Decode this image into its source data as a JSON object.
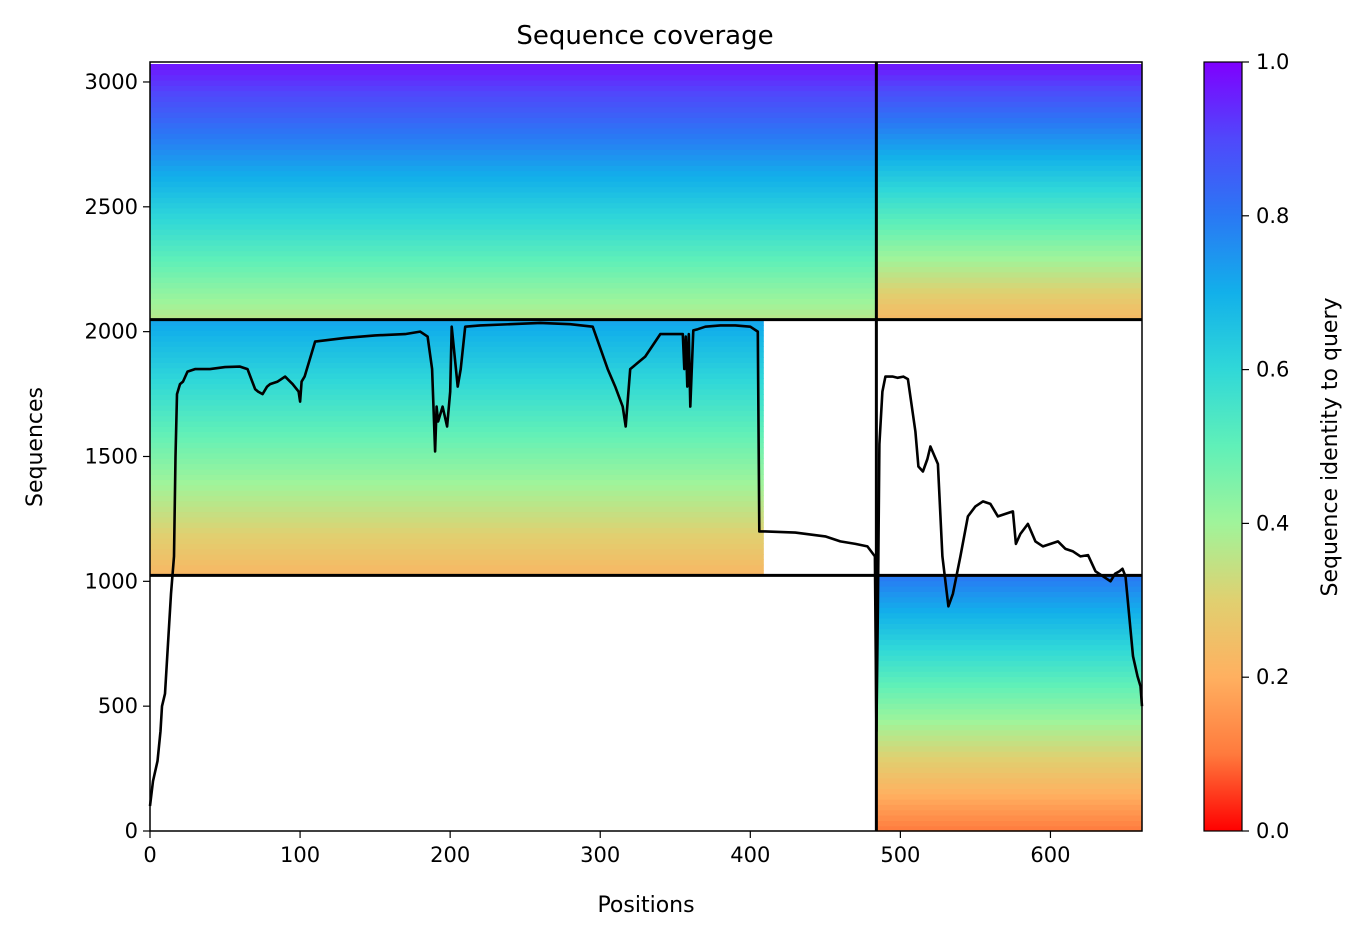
{
  "chart_data": {
    "type": "heatmap",
    "title": "Sequence coverage",
    "xlabel": "Positions",
    "ylabel": "Sequences",
    "xlim": [
      0,
      661
    ],
    "ylim": [
      0,
      3080
    ],
    "xticks": [
      0,
      100,
      200,
      300,
      400,
      500,
      600
    ],
    "yticks": [
      0,
      500,
      1000,
      1500,
      2000,
      2500,
      3000
    ],
    "colorbar": {
      "label": "Sequence identity to query",
      "ticks": [
        0.0,
        0.2,
        0.4,
        0.6,
        0.8,
        1.0
      ],
      "tick_labels": [
        "0.0",
        "0.2",
        "0.4",
        "0.6",
        "0.8",
        "1.0"
      ],
      "colormap": "rainbow_r",
      "colors": [
        "#ff0000",
        "#ff7a3d",
        "#ffb060",
        "#e0d070",
        "#a0f49a",
        "#60f0b8",
        "#30d8d8",
        "#12b0ea",
        "#2a78f4",
        "#5048fb",
        "#7f00ff"
      ]
    },
    "domain_divider_x": 484,
    "group_divider_y": [
      1024,
      2048
    ],
    "blocks": [
      {
        "x0": 0,
        "x1": 484,
        "y0": 2048,
        "y1": 3072,
        "identity_bottom": 0.36,
        "identity_top": 0.97
      },
      {
        "x0": 484,
        "x1": 661,
        "y0": 2048,
        "y1": 3072,
        "identity_bottom": 0.22,
        "identity_top": 0.97
      },
      {
        "x0": 0,
        "x1": 409,
        "y0": 1024,
        "y1": 2048,
        "identity_bottom": 0.22,
        "identity_top": 0.72
      },
      {
        "x0": 484,
        "x1": 661,
        "y0": 0,
        "y1": 1024,
        "identity_bottom": 0.1,
        "identity_top": 0.8
      }
    ],
    "coverage_line": {
      "color": "#000000",
      "x": [
        0,
        2,
        5,
        7,
        8,
        10,
        12,
        14,
        16,
        17,
        18,
        20,
        22,
        25,
        30,
        40,
        50,
        60,
        65,
        70,
        72,
        75,
        78,
        80,
        85,
        90,
        95,
        99,
        100,
        101,
        103,
        110,
        130,
        150,
        170,
        180,
        185,
        188,
        190,
        191,
        192,
        195,
        198,
        200,
        201,
        203,
        205,
        207,
        210,
        220,
        240,
        260,
        280,
        295,
        305,
        310,
        315,
        317,
        320,
        330,
        340,
        355,
        356,
        357,
        358,
        359,
        360,
        362,
        365,
        370,
        380,
        390,
        400,
        405,
        406,
        408,
        410,
        430,
        450,
        460,
        470,
        478,
        483,
        484,
        485,
        486,
        488,
        490,
        492,
        495,
        498,
        502,
        505,
        510,
        512,
        515,
        518,
        520,
        525,
        528,
        530,
        532,
        535,
        540,
        545,
        550,
        555,
        560,
        565,
        570,
        575,
        577,
        580,
        585,
        590,
        595,
        600,
        605,
        610,
        615,
        620,
        625,
        630,
        635,
        640,
        643,
        646,
        648,
        650,
        655,
        658,
        660,
        661
      ],
      "y": [
        100,
        200,
        280,
        400,
        500,
        550,
        750,
        950,
        1100,
        1500,
        1750,
        1790,
        1800,
        1840,
        1850,
        1850,
        1858,
        1860,
        1850,
        1770,
        1760,
        1750,
        1780,
        1790,
        1800,
        1820,
        1790,
        1760,
        1720,
        1800,
        1820,
        1960,
        1975,
        1985,
        1990,
        2000,
        1980,
        1850,
        1520,
        1700,
        1640,
        1700,
        1620,
        1760,
        2020,
        1900,
        1780,
        1850,
        2020,
        2025,
        2030,
        2035,
        2030,
        2020,
        1850,
        1780,
        1700,
        1620,
        1850,
        1900,
        1990,
        1990,
        1850,
        1980,
        1780,
        1990,
        1700,
        2005,
        2010,
        2020,
        2025,
        2025,
        2020,
        2000,
        1200,
        1200,
        1200,
        1195,
        1180,
        1160,
        1150,
        1140,
        1100,
        400,
        900,
        1550,
        1760,
        1820,
        1820,
        1820,
        1815,
        1820,
        1810,
        1600,
        1460,
        1440,
        1490,
        1540,
        1470,
        1100,
        1000,
        900,
        950,
        1100,
        1260,
        1300,
        1320,
        1310,
        1260,
        1270,
        1280,
        1150,
        1190,
        1230,
        1160,
        1140,
        1150,
        1160,
        1130,
        1120,
        1100,
        1105,
        1040,
        1020,
        1000,
        1030,
        1040,
        1050,
        1020,
        700,
        620,
        580,
        500
      ]
    }
  }
}
